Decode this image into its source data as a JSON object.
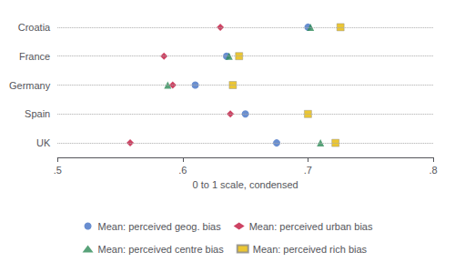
{
  "chart_data": {
    "type": "scatter",
    "categories": [
      "Croatia",
      "France",
      "Germany",
      "Spain",
      "UK"
    ],
    "series": [
      {
        "name": "Mean: perceived geog. bias",
        "color": "#4472C4",
        "marker": "circle",
        "values": [
          0.7,
          0.635,
          0.61,
          0.65,
          0.675
        ]
      },
      {
        "name": "Mean: perceived urban bias",
        "color": "#C0143C",
        "marker": "diamond",
        "values": [
          0.63,
          0.585,
          0.592,
          0.638,
          0.558
        ]
      },
      {
        "name": "Mean: perceived centre bias",
        "color": "#2E8B57",
        "marker": "triangle",
        "values": [
          0.702,
          0.637,
          0.588,
          null,
          0.71
        ]
      },
      {
        "name": "Mean: perceived rich bias",
        "color": "#E6B800",
        "marker": "square",
        "values": [
          0.726,
          0.645,
          0.64,
          0.7,
          0.722
        ]
      }
    ],
    "xlabel": "0 to 1 scale, condensed",
    "xlim": [
      0.5,
      0.8
    ],
    "xticks": [
      {
        "value": 0.5,
        "label": ".5"
      },
      {
        "value": 0.6,
        "label": ".6"
      },
      {
        "value": 0.7,
        "label": ".7"
      },
      {
        "value": 0.8,
        "label": ".8"
      }
    ],
    "grid": "y",
    "legend": "bottom"
  }
}
